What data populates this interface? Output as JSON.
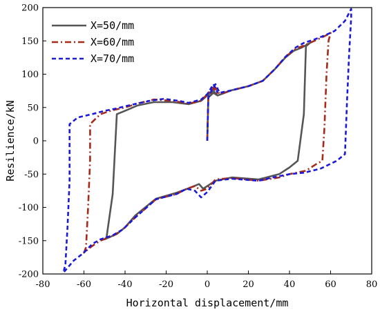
{
  "chart_data": {
    "type": "line",
    "xlabel": "Horizontal displacement/mm",
    "ylabel": "Resilience/kN",
    "xlim": [
      -80,
      80
    ],
    "ylim": [
      -200,
      200
    ],
    "xticks": [
      -80,
      -60,
      -40,
      -20,
      0,
      20,
      40,
      60,
      80
    ],
    "yticks": [
      -200,
      -150,
      -100,
      -50,
      0,
      50,
      100,
      150,
      200
    ],
    "grid": false,
    "legend_position": "top-left",
    "series": [
      {
        "name": "X=50/mm",
        "color": "#555555",
        "dash": "solid",
        "points": [
          [
            0,
            0
          ],
          [
            0.5,
            65
          ],
          [
            3,
            72
          ],
          [
            5,
            68
          ],
          [
            12,
            76
          ],
          [
            20,
            82
          ],
          [
            27,
            90
          ],
          [
            33,
            108
          ],
          [
            38,
            125
          ],
          [
            42,
            135
          ],
          [
            46,
            140
          ],
          [
            50,
            147
          ],
          [
            48,
            142
          ],
          [
            47,
            40
          ],
          [
            44,
            -30
          ],
          [
            40,
            -40
          ],
          [
            35,
            -50
          ],
          [
            25,
            -58
          ],
          [
            12,
            -55
          ],
          [
            4,
            -60
          ],
          [
            0,
            -68
          ],
          [
            -2,
            -72
          ],
          [
            -4,
            -65
          ],
          [
            -8,
            -70
          ],
          [
            -15,
            -78
          ],
          [
            -25,
            -87
          ],
          [
            -35,
            -112
          ],
          [
            -40,
            -130
          ],
          [
            -44,
            -140
          ],
          [
            -50,
            -148
          ],
          [
            -49,
            -145
          ],
          [
            -46,
            -80
          ],
          [
            -45,
            -20
          ],
          [
            -44,
            40
          ],
          [
            -40,
            45
          ],
          [
            -34,
            53
          ],
          [
            -26,
            58
          ],
          [
            -17,
            58
          ],
          [
            -9,
            55
          ],
          [
            -3,
            60
          ],
          [
            0,
            68
          ],
          [
            3,
            75
          ],
          [
            5,
            68
          ]
        ]
      },
      {
        "name": "X=60/mm",
        "color": "#a52a1a",
        "dash": "9,4,2,4",
        "points": [
          [
            0,
            0
          ],
          [
            0.5,
            66
          ],
          [
            2,
            72
          ],
          [
            4,
            80
          ],
          [
            6,
            70
          ],
          [
            12,
            76
          ],
          [
            20,
            82
          ],
          [
            27,
            90
          ],
          [
            33,
            108
          ],
          [
            38,
            126
          ],
          [
            43,
            138
          ],
          [
            47,
            143
          ],
          [
            52,
            150
          ],
          [
            57,
            157
          ],
          [
            60,
            162
          ],
          [
            59,
            150
          ],
          [
            58,
            100
          ],
          [
            57,
            20
          ],
          [
            56,
            -30
          ],
          [
            53,
            -35
          ],
          [
            48,
            -45
          ],
          [
            40,
            -50
          ],
          [
            35,
            -55
          ],
          [
            25,
            -60
          ],
          [
            12,
            -56
          ],
          [
            4,
            -58
          ],
          [
            0,
            -72
          ],
          [
            -3,
            -75
          ],
          [
            -6,
            -68
          ],
          [
            -10,
            -72
          ],
          [
            -15,
            -80
          ],
          [
            -25,
            -88
          ],
          [
            -35,
            -115
          ],
          [
            -41,
            -133
          ],
          [
            -46,
            -143
          ],
          [
            -52,
            -150
          ],
          [
            -56,
            -158
          ],
          [
            -60,
            -168
          ],
          [
            -59,
            -160
          ],
          [
            -58,
            -100
          ],
          [
            -57,
            -30
          ],
          [
            -57,
            25
          ],
          [
            -52,
            40
          ],
          [
            -46,
            46
          ],
          [
            -40,
            50
          ],
          [
            -34,
            56
          ],
          [
            -26,
            62
          ],
          [
            -17,
            60
          ],
          [
            -9,
            56
          ],
          [
            -3,
            60
          ],
          [
            0,
            70
          ],
          [
            3,
            80
          ],
          [
            5,
            70
          ]
        ]
      },
      {
        "name": "X=70/mm",
        "color": "#1a1add",
        "dash": "6,4",
        "points": [
          [
            0,
            0
          ],
          [
            0.5,
            65
          ],
          [
            2,
            75
          ],
          [
            4,
            85
          ],
          [
            6,
            72
          ],
          [
            12,
            76
          ],
          [
            20,
            82
          ],
          [
            27,
            90
          ],
          [
            33,
            108
          ],
          [
            38,
            126
          ],
          [
            43,
            140
          ],
          [
            47,
            147
          ],
          [
            52,
            152
          ],
          [
            57,
            158
          ],
          [
            62,
            165
          ],
          [
            67,
            180
          ],
          [
            70,
            198
          ],
          [
            70,
            185
          ],
          [
            69,
            130
          ],
          [
            68,
            60
          ],
          [
            67,
            -20
          ],
          [
            63,
            -30
          ],
          [
            55,
            -42
          ],
          [
            47,
            -48
          ],
          [
            40,
            -50
          ],
          [
            32,
            -55
          ],
          [
            25,
            -60
          ],
          [
            12,
            -57
          ],
          [
            4,
            -60
          ],
          [
            0,
            -77
          ],
          [
            -3,
            -85
          ],
          [
            -6,
            -75
          ],
          [
            -10,
            -72
          ],
          [
            -15,
            -80
          ],
          [
            -25,
            -88
          ],
          [
            -35,
            -115
          ],
          [
            -41,
            -133
          ],
          [
            -46,
            -142
          ],
          [
            -52,
            -148
          ],
          [
            -56,
            -155
          ],
          [
            -60,
            -168
          ],
          [
            -65,
            -180
          ],
          [
            -70,
            -198
          ],
          [
            -69,
            -185
          ],
          [
            -68,
            -130
          ],
          [
            -67,
            -60
          ],
          [
            -67,
            25
          ],
          [
            -63,
            35
          ],
          [
            -56,
            40
          ],
          [
            -50,
            45
          ],
          [
            -45,
            48
          ],
          [
            -37,
            54
          ],
          [
            -28,
            60
          ],
          [
            -21,
            63
          ],
          [
            -14,
            60
          ],
          [
            -9,
            57
          ],
          [
            -3,
            62
          ],
          [
            0,
            70
          ],
          [
            3,
            85
          ],
          [
            5,
            72
          ]
        ]
      }
    ]
  }
}
